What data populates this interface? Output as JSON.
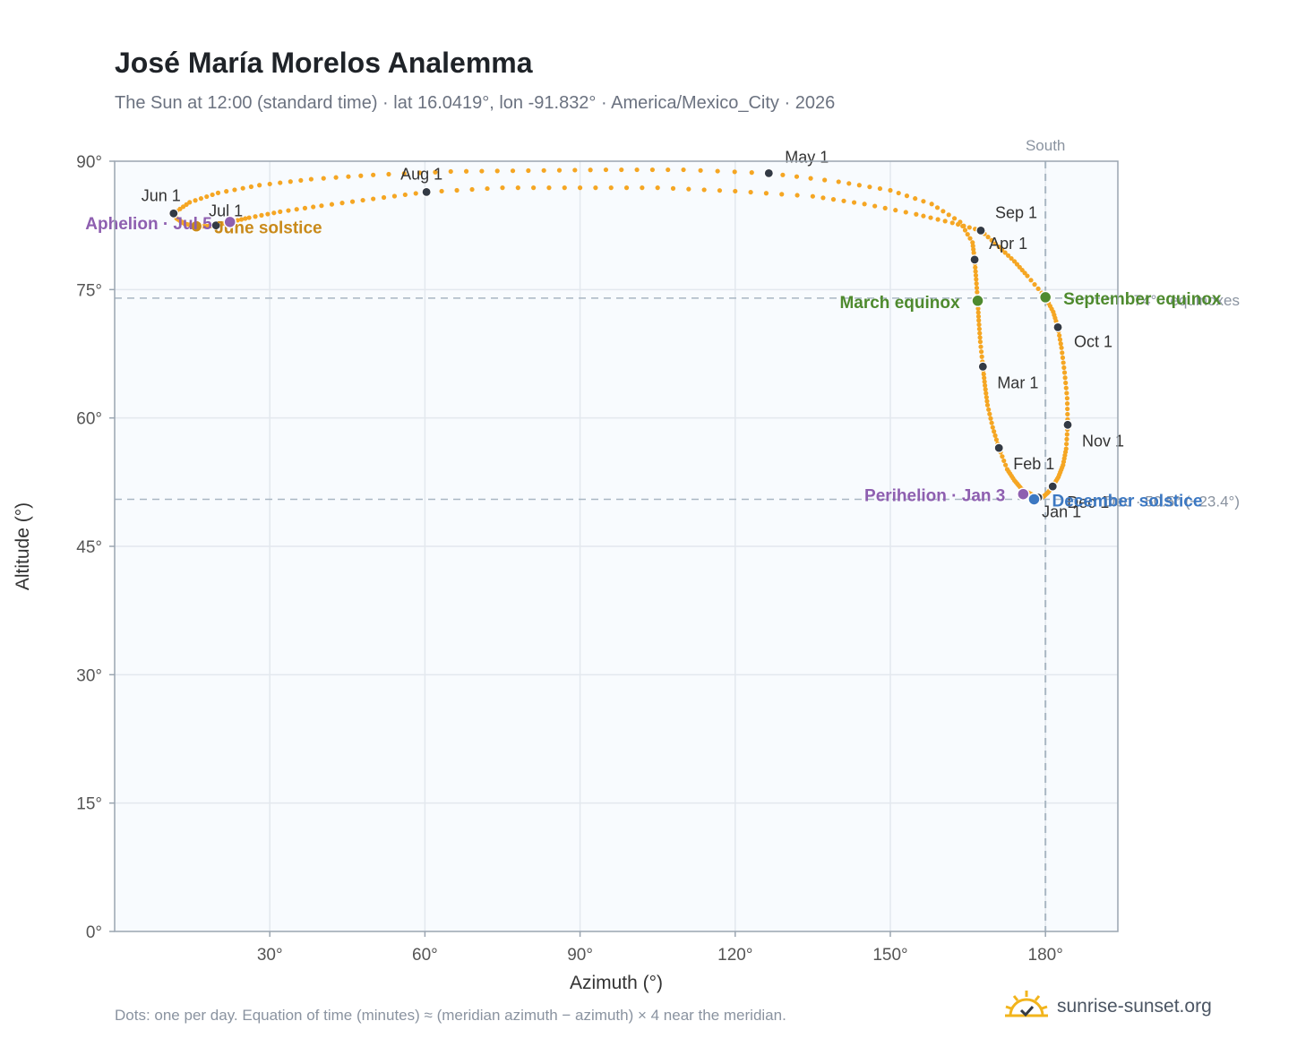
{
  "title": "José María Morelos Analemma",
  "subtitle": "The Sun at 12:00 (standard time) · lat 16.0419°, lon -91.832° · America/Mexico_City · 2026",
  "footnote": "Dots: one per day. Equation of time (minutes) ≈ (meridian azimuth − azimuth) × 4 near the meridian.",
  "brand": "sunrise-sunset.org",
  "colors": {
    "curve": "#f5a623",
    "month_point": "#333a45",
    "equinox": "#4e8a2e",
    "june_solstice": "#c98a1a",
    "december_solstice": "#3c78c2",
    "apsis": "#8e5fb0",
    "plot_bg": "#f8fbfe",
    "grid": "#e3e8ee",
    "ref_line": "#a9b7c3"
  },
  "chart_data": {
    "type": "scatter",
    "xlabel": "Azimuth (°)",
    "ylabel": "Altitude (°)",
    "xlim": [
      0,
      194
    ],
    "ylim": [
      0,
      90
    ],
    "xticks": [
      30,
      60,
      90,
      120,
      150,
      180
    ],
    "xtick_labels": [
      "30°",
      "60°",
      "90°",
      "120°",
      "150°",
      "180°"
    ],
    "yticks": [
      0,
      15,
      30,
      45,
      60,
      75,
      90
    ],
    "ytick_labels": [
      "0°",
      "15°",
      "30°",
      "45°",
      "60°",
      "75°",
      "90°"
    ],
    "grid": true,
    "south_line": {
      "azimuth": 180,
      "label": "South"
    },
    "equinox_altitude_line": {
      "altitude": 74.0,
      "label": "74° · equinoxes"
    },
    "solstice_altitude_line": {
      "altitude": 50.5,
      "label": "Dec · 50.5° (−23.4°)"
    },
    "month_points": [
      {
        "label": "Jan 1",
        "azimuth": 178.6,
        "altitude": 50.7
      },
      {
        "label": "Feb 1",
        "azimuth": 171.0,
        "altitude": 56.5
      },
      {
        "label": "Mar 1",
        "azimuth": 167.9,
        "altitude": 66.0
      },
      {
        "label": "Apr 1",
        "azimuth": 166.3,
        "altitude": 78.5
      },
      {
        "label": "May 1",
        "azimuth": 126.5,
        "altitude": 88.6
      },
      {
        "label": "Jun 1",
        "azimuth": 11.4,
        "altitude": 83.9
      },
      {
        "label": "Jul 1",
        "azimuth": 19.6,
        "altitude": 82.5
      },
      {
        "label": "Aug 1",
        "azimuth": 60.3,
        "altitude": 86.4
      },
      {
        "label": "Sep 1",
        "azimuth": 167.5,
        "altitude": 81.9
      },
      {
        "label": "Oct 1",
        "azimuth": 182.4,
        "altitude": 70.6
      },
      {
        "label": "Nov 1",
        "azimuth": 184.3,
        "altitude": 59.2
      },
      {
        "label": "Dec 1",
        "azimuth": 181.4,
        "altitude": 52.0
      }
    ],
    "events": [
      {
        "label": "March equinox",
        "azimuth": 166.9,
        "altitude": 73.7,
        "kind": "equinox"
      },
      {
        "label": "September equinox",
        "azimuth": 180.0,
        "altitude": 74.1,
        "kind": "equinox"
      },
      {
        "label": "June solstice",
        "azimuth": 15.8,
        "altitude": 82.4,
        "kind": "june_solstice"
      },
      {
        "label": "December solstice",
        "azimuth": 177.8,
        "altitude": 50.5,
        "kind": "december_solstice"
      },
      {
        "label": "Perihelion · Jan 3",
        "azimuth": 175.7,
        "altitude": 51.1,
        "kind": "apsis"
      },
      {
        "label": "Aphelion · Jul 5",
        "azimuth": 22.3,
        "altitude": 82.9,
        "kind": "apsis"
      }
    ],
    "daily_path": [
      [
        178.6,
        50.7
      ],
      [
        176.9,
        51.2
      ],
      [
        175.4,
        51.7
      ],
      [
        174.0,
        52.7
      ],
      [
        172.6,
        54.0
      ],
      [
        171.0,
        56.5
      ],
      [
        169.8,
        58.9
      ],
      [
        168.8,
        61.5
      ],
      [
        168.3,
        63.8
      ],
      [
        167.9,
        66.0
      ],
      [
        167.4,
        68.9
      ],
      [
        167.1,
        71.4
      ],
      [
        166.9,
        73.7
      ],
      [
        166.6,
        76.2
      ],
      [
        166.3,
        78.5
      ],
      [
        165.9,
        80.5
      ],
      [
        163.5,
        82.9
      ],
      [
        158.0,
        85.0
      ],
      [
        150.0,
        86.6
      ],
      [
        140.0,
        87.6
      ],
      [
        126.5,
        88.6
      ],
      [
        110.0,
        89.0
      ],
      [
        95.0,
        89.0
      ],
      [
        80.0,
        88.9
      ],
      [
        65.0,
        88.8
      ],
      [
        50.0,
        88.4
      ],
      [
        38.0,
        87.9
      ],
      [
        28.0,
        87.2
      ],
      [
        20.0,
        86.3
      ],
      [
        14.5,
        85.2
      ],
      [
        11.4,
        83.9
      ],
      [
        12.0,
        83.3
      ],
      [
        13.5,
        82.7
      ],
      [
        15.8,
        82.4
      ],
      [
        17.8,
        82.4
      ],
      [
        19.6,
        82.5
      ],
      [
        22.3,
        82.9
      ],
      [
        26.0,
        83.4
      ],
      [
        32.0,
        84.1
      ],
      [
        40.0,
        84.8
      ],
      [
        50.0,
        85.6
      ],
      [
        60.3,
        86.4
      ],
      [
        75.0,
        86.9
      ],
      [
        90.0,
        86.9
      ],
      [
        105.0,
        86.9
      ],
      [
        120.0,
        86.5
      ],
      [
        135.0,
        85.9
      ],
      [
        145.0,
        85.0
      ],
      [
        155.0,
        83.8
      ],
      [
        162.0,
        82.8
      ],
      [
        167.5,
        81.9
      ],
      [
        171.0,
        80.0
      ],
      [
        174.0,
        78.3
      ],
      [
        176.5,
        76.6
      ],
      [
        180.0,
        74.1
      ],
      [
        181.5,
        72.4
      ],
      [
        182.4,
        70.6
      ],
      [
        183.1,
        68.2
      ],
      [
        183.7,
        65.3
      ],
      [
        184.2,
        62.3
      ],
      [
        184.3,
        59.2
      ],
      [
        184.0,
        56.4
      ],
      [
        183.4,
        54.5
      ],
      [
        182.5,
        53.1
      ],
      [
        181.4,
        52.0
      ],
      [
        180.5,
        51.3
      ],
      [
        179.6,
        50.8
      ],
      [
        178.6,
        50.7
      ]
    ]
  }
}
